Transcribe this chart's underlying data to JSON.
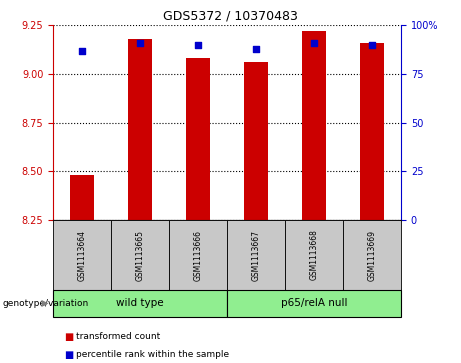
{
  "title": "GDS5372 / 10370483",
  "samples": [
    "GSM1113664",
    "GSM1113665",
    "GSM1113666",
    "GSM1113667",
    "GSM1113668",
    "GSM1113669"
  ],
  "red_values": [
    8.48,
    9.18,
    9.08,
    9.06,
    9.22,
    9.16
  ],
  "blue_values": [
    87,
    91,
    90,
    88,
    91,
    90
  ],
  "ylim_left": [
    8.25,
    9.25
  ],
  "ylim_right": [
    0,
    100
  ],
  "yticks_left": [
    8.25,
    8.5,
    8.75,
    9.0,
    9.25
  ],
  "yticks_right": [
    0,
    25,
    50,
    75,
    100
  ],
  "groups": [
    {
      "label": "wild type",
      "indices": [
        0,
        1,
        2
      ]
    },
    {
      "label": "p65/relA null",
      "indices": [
        3,
        4,
        5
      ]
    }
  ],
  "bar_color": "#CC0000",
  "dot_color": "#0000CC",
  "sample_bg_color": "#C8C8C8",
  "group_color": "#90EE90",
  "legend_red": "transformed count",
  "legend_blue": "percentile rank within the sample",
  "genotype_label": "genotype/variation",
  "left_axis_color": "#CC0000",
  "right_axis_color": "#0000CC",
  "bar_width": 0.4
}
